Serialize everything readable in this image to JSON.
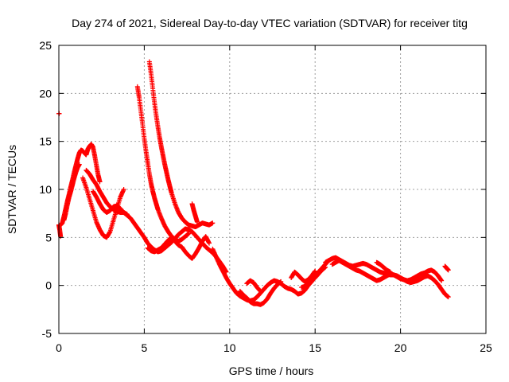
{
  "chart_data": {
    "type": "scatter",
    "title": "Day 274 of 2021, Sidereal Day-to-day VTEC variation (SDTVAR) for receiver titg",
    "xlabel": "GPS time / hours",
    "ylabel": "SDTVAR / TECUs",
    "xlim": [
      0,
      25
    ],
    "ylim": [
      -5,
      25
    ],
    "x_ticks": [
      0,
      5,
      10,
      15,
      20,
      25
    ],
    "y_ticks": [
      -5,
      0,
      5,
      10,
      15,
      20,
      25
    ],
    "grid": true,
    "marker": "+",
    "series": [
      {
        "name": "SDTVAR",
        "color": "#ff0000",
        "segments": [
          {
            "x": [
              0.0,
              0.02
            ],
            "y": [
              17.9,
              17.9
            ]
          },
          {
            "x": [
              0.0,
              0.05,
              0.1
            ],
            "y": [
              6.3,
              5.8,
              5.1
            ]
          },
          {
            "x": [
              0.1,
              0.2,
              0.3,
              0.4,
              0.5,
              0.6,
              0.7,
              0.8,
              0.9,
              1.0,
              1.1,
              1.2,
              1.3,
              1.4,
              1.5,
              1.6,
              1.7,
              1.8,
              1.9,
              2.0,
              2.1,
              2.2,
              2.3,
              2.4
            ],
            "y": [
              6.3,
              6.5,
              7.2,
              8.0,
              8.8,
              9.5,
              10.3,
              11.0,
              11.8,
              12.5,
              13.2,
              13.8,
              14.1,
              14.0,
              13.8,
              13.6,
              14.2,
              14.5,
              14.7,
              14.4,
              13.5,
              12.5,
              11.5,
              10.8
            ]
          },
          {
            "x": [
              0.3,
              0.4,
              0.5,
              0.6,
              0.7,
              0.8,
              0.9,
              1.0,
              1.1,
              1.2
            ],
            "y": [
              6.8,
              7.5,
              8.4,
              9.2,
              9.8,
              10.5,
              11.2,
              11.8,
              12.3,
              12.6
            ]
          },
          {
            "x": [
              1.6,
              1.8,
              2.0,
              2.2,
              2.4,
              2.6,
              2.8,
              3.0,
              3.2,
              3.4,
              3.6,
              3.8,
              4.0,
              4.2,
              4.4,
              4.6,
              4.8,
              5.0,
              5.2,
              5.4,
              5.6,
              5.8,
              6.0,
              6.2,
              6.4,
              6.6,
              6.8,
              7.0,
              7.2,
              7.4,
              7.6,
              7.8,
              8.0,
              8.2,
              8.4,
              8.6,
              8.8,
              9.0,
              9.2,
              9.4,
              9.6,
              9.8
            ],
            "y": [
              12.0,
              11.6,
              11.0,
              10.5,
              9.8,
              9.2,
              8.6,
              8.2,
              7.9,
              7.7,
              7.6,
              7.6,
              7.3,
              7.0,
              6.5,
              6.0,
              5.5,
              5.0,
              4.4,
              4.0,
              3.7,
              3.5,
              3.6,
              3.9,
              4.2,
              4.5,
              4.9,
              5.3,
              5.6,
              5.9,
              5.8,
              5.6,
              5.2,
              4.8,
              4.4,
              4.0,
              3.7,
              3.4,
              3.0,
              2.5,
              2.0,
              1.4
            ]
          },
          {
            "x": [
              1.4,
              1.6,
              1.8,
              2.0,
              2.2,
              2.4,
              2.6,
              2.8,
              3.0,
              3.2,
              3.4,
              3.6,
              3.8
            ],
            "y": [
              11.2,
              10.2,
              9.0,
              7.8,
              6.6,
              5.8,
              5.2,
              5.0,
              5.6,
              6.8,
              8.0,
              9.2,
              10.0
            ]
          },
          {
            "x": [
              2.0,
              2.2,
              2.4,
              2.6,
              2.8,
              3.0,
              3.2,
              3.4,
              3.6,
              3.8,
              4.0
            ],
            "y": [
              9.8,
              9.2,
              8.5,
              7.9,
              7.6,
              7.8,
              8.2,
              8.3,
              8.0,
              7.6,
              7.4
            ]
          },
          {
            "x": [
              4.6,
              4.7,
              4.8,
              4.9,
              5.0,
              5.1,
              5.2,
              5.3,
              5.4,
              5.5,
              5.6,
              5.7,
              5.8,
              6.0,
              6.2,
              6.4,
              6.6,
              6.8,
              7.0,
              7.2,
              7.4,
              7.6
            ],
            "y": [
              20.7,
              19.6,
              18.2,
              16.8,
              15.3,
              14.0,
              12.8,
              11.6,
              10.6,
              9.8,
              9.1,
              8.5,
              7.9,
              7.0,
              6.2,
              5.6,
              5.1,
              4.8,
              4.6,
              4.8,
              5.1,
              5.4
            ]
          },
          {
            "x": [
              5.3,
              5.4,
              5.5,
              5.6,
              5.7,
              5.8,
              5.9,
              6.0,
              6.1,
              6.2,
              6.3,
              6.4,
              6.5,
              6.6,
              6.8,
              7.0,
              7.2,
              7.4,
              7.6,
              7.8,
              8.0,
              8.2,
              8.4,
              8.6,
              8.8,
              9.0
            ],
            "y": [
              23.3,
              22.0,
              20.5,
              19.0,
              17.7,
              16.5,
              15.4,
              14.4,
              13.5,
              12.6,
              11.8,
              11.0,
              10.3,
              9.6,
              8.5,
              7.6,
              7.0,
              6.6,
              6.3,
              6.2,
              6.1,
              6.3,
              6.5,
              6.4,
              6.3,
              6.5
            ]
          },
          {
            "x": [
              5.2,
              5.4,
              5.6,
              5.8,
              6.0,
              6.2,
              6.4,
              6.6,
              6.8,
              7.0,
              7.2,
              7.4,
              7.6,
              7.8,
              8.0,
              8.2,
              8.4,
              8.6,
              8.8
            ],
            "y": [
              3.9,
              3.6,
              3.5,
              3.7,
              3.9,
              4.3,
              4.7,
              5.0,
              4.6,
              4.2,
              4.0,
              3.5,
              3.1,
              2.8,
              3.3,
              3.9,
              4.6,
              5.1,
              4.4
            ]
          },
          {
            "x": [
              7.8,
              7.9,
              8.0,
              8.1
            ],
            "y": [
              8.5,
              7.8,
              7.2,
              6.6
            ]
          },
          {
            "x": [
              9.0,
              9.2,
              9.4,
              9.6,
              9.8,
              10.0,
              10.2,
              10.4,
              10.6,
              10.8,
              11.0,
              11.2,
              11.4,
              11.6,
              11.8,
              12.0,
              12.2,
              12.4,
              12.6,
              12.8,
              13.0,
              13.2,
              13.4,
              13.6,
              13.8,
              14.0,
              14.2,
              14.4,
              14.6,
              14.8,
              15.0,
              15.2,
              15.4,
              15.6,
              15.8
            ],
            "y": [
              3.8,
              3.0,
              2.2,
              1.5,
              0.8,
              0.2,
              -0.3,
              -0.8,
              -1.1,
              -1.3,
              -1.5,
              -1.6,
              -1.5,
              -1.2,
              -0.8,
              -0.4,
              0.0,
              0.3,
              0.5,
              0.4,
              0.2,
              -0.1,
              -0.3,
              -0.4,
              -0.6,
              -0.9,
              -0.8,
              -0.5,
              0.0,
              0.4,
              0.9,
              1.4,
              1.8,
              2.2,
              2.6
            ]
          },
          {
            "x": [
              10.6,
              10.8,
              11.0,
              11.2,
              11.4,
              11.6,
              11.8,
              12.0,
              12.2,
              12.4,
              12.6,
              12.8,
              13.0
            ],
            "y": [
              -0.6,
              -1.0,
              -1.3,
              -1.7,
              -1.9,
              -1.9,
              -2.0,
              -1.8,
              -1.4,
              -0.8,
              -0.3,
              0.1,
              0.4
            ]
          },
          {
            "x": [
              11.0,
              11.2,
              11.4,
              11.6,
              11.8
            ],
            "y": [
              0.2,
              0.5,
              0.3,
              -0.2,
              -0.6
            ]
          },
          {
            "x": [
              13.6,
              13.8,
              14.0,
              14.2,
              14.4,
              14.6,
              14.8,
              15.0
            ],
            "y": [
              0.8,
              1.4,
              1.1,
              0.7,
              0.4,
              0.6,
              1.0,
              1.5
            ]
          },
          {
            "x": [
              14.2,
              14.4,
              14.6,
              14.8,
              15.0,
              15.2,
              15.4,
              15.6
            ],
            "y": [
              -0.2,
              -0.1,
              0.2,
              0.5,
              0.8,
              1.2,
              1.6,
              1.9
            ]
          },
          {
            "x": [
              15.6,
              15.8,
              16.0,
              16.2,
              16.4,
              16.6,
              16.8,
              17.0,
              17.2,
              17.4,
              17.6,
              17.8,
              18.0,
              18.2,
              18.4,
              18.6,
              18.8,
              19.0,
              19.2,
              19.4,
              19.6,
              19.8,
              20.0,
              20.2,
              20.4,
              20.6,
              20.8,
              21.0,
              21.2,
              21.4,
              21.6,
              21.8,
              22.0,
              22.2,
              22.4,
              22.6,
              22.8
            ],
            "y": [
              2.4,
              2.6,
              2.8,
              2.9,
              2.7,
              2.5,
              2.3,
              2.1,
              2.0,
              2.1,
              2.2,
              2.3,
              2.2,
              2.0,
              1.8,
              1.6,
              1.4,
              1.3,
              1.2,
              1.1,
              1.1,
              1.0,
              0.8,
              0.6,
              0.4,
              0.3,
              0.4,
              0.5,
              0.7,
              0.9,
              1.0,
              0.8,
              0.5,
              0.1,
              -0.4,
              -0.9,
              -1.2
            ]
          },
          {
            "x": [
              16.0,
              16.2,
              16.4,
              16.6,
              16.8,
              17.0,
              17.2,
              17.4,
              17.6,
              17.8,
              18.0,
              18.2,
              18.4,
              18.6,
              18.8,
              19.0,
              19.2,
              19.4,
              19.6,
              19.8,
              20.0,
              20.2,
              20.4,
              20.6,
              20.8,
              21.0,
              21.2,
              21.4,
              21.6,
              21.8,
              22.0,
              22.2,
              22.4
            ],
            "y": [
              2.2,
              2.4,
              2.6,
              2.4,
              2.2,
              2.0,
              1.8,
              1.6,
              1.5,
              1.3,
              1.1,
              0.9,
              0.7,
              0.5,
              0.6,
              0.8,
              1.0,
              1.2,
              1.1,
              0.9,
              0.7,
              0.6,
              0.5,
              0.6,
              0.8,
              1.0,
              1.2,
              1.3,
              1.5,
              1.6,
              1.4,
              1.0,
              0.5
            ]
          },
          {
            "x": [
              18.6,
              18.8,
              19.0,
              19.2,
              19.4
            ],
            "y": [
              2.4,
              2.2,
              1.9,
              1.6,
              1.4
            ]
          },
          {
            "x": [
              22.6,
              22.7,
              22.8
            ],
            "y": [
              2.0,
              1.8,
              1.6
            ]
          }
        ]
      }
    ]
  }
}
